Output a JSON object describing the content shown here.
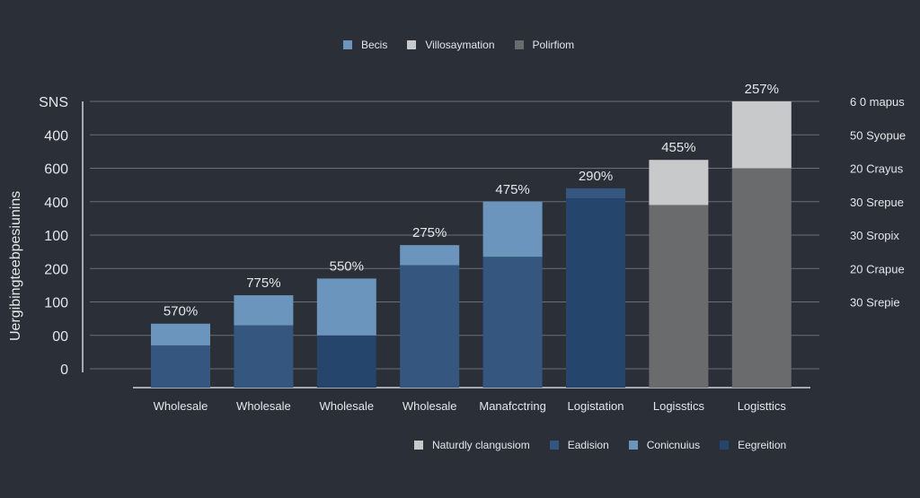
{
  "chart_data": {
    "type": "bar",
    "title": "",
    "ylabel": "Uergibingteebpesiunins",
    "xlabel": "",
    "y_ticks": [
      "SNS",
      "400",
      "600",
      "400",
      "100",
      "200",
      "100",
      "00",
      "0"
    ],
    "right_ticks": [
      "6 0 mapus",
      "50 Syopue",
      "20 Crayus",
      "30 Srepue",
      "30 Sropix",
      "20 Crapue",
      "30 Srepie"
    ],
    "categories": [
      "Wholesale",
      "Wholesale",
      "Wholesale",
      "Wholesale",
      "Manafcctring",
      "Logistation",
      "Logisstics",
      "Logisttics"
    ],
    "bar_labels": [
      "570%",
      "775%",
      "550%",
      "275%",
      "475%",
      "290%",
      "455%",
      "257%"
    ],
    "ylim": [
      0,
      8
    ],
    "grid": true,
    "legend_top": [
      {
        "name": "Becis",
        "color": "#6b95bd"
      },
      {
        "name": "Villosaymation",
        "color": "#c8c9cb"
      },
      {
        "name": "Polirfiom",
        "color": "#6a6b6c"
      }
    ],
    "legend_bottom": [
      {
        "name": "Naturdly clangusiom",
        "color": "#c8c9cb"
      },
      {
        "name": "Eadision",
        "color": "#35577f"
      },
      {
        "name": "Conicnuius",
        "color": "#6b95bd"
      },
      {
        "name": "Eegreition",
        "color": "#26456d"
      }
    ],
    "stacks": [
      {
        "bottom": 0.7,
        "bottom_color": "#35577f",
        "top": 0.65,
        "top_color": "#6b95bd"
      },
      {
        "bottom": 1.3,
        "bottom_color": "#35577f",
        "top": 0.9,
        "top_color": "#6b95bd"
      },
      {
        "bottom": 1.0,
        "bottom_color": "#26456d",
        "top": 1.7,
        "top_color": "#6b95bd"
      },
      {
        "bottom": 3.1,
        "bottom_color": "#35577f",
        "top": 0.6,
        "top_color": "#6b95bd"
      },
      {
        "bottom": 3.35,
        "bottom_color": "#35577f",
        "top": 1.65,
        "top_color": "#6b95bd"
      },
      {
        "bottom": 5.1,
        "bottom_color": "#26456d",
        "top": 0.3,
        "top_color": "#35577f"
      },
      {
        "bottom": 4.9,
        "bottom_color": "#6a6b6c",
        "top": 1.35,
        "top_color": "#c8c9cb"
      },
      {
        "bottom": 6.0,
        "bottom_color": "#6a6b6c",
        "top": 2.0,
        "top_color": "#c8c9cb"
      }
    ]
  }
}
